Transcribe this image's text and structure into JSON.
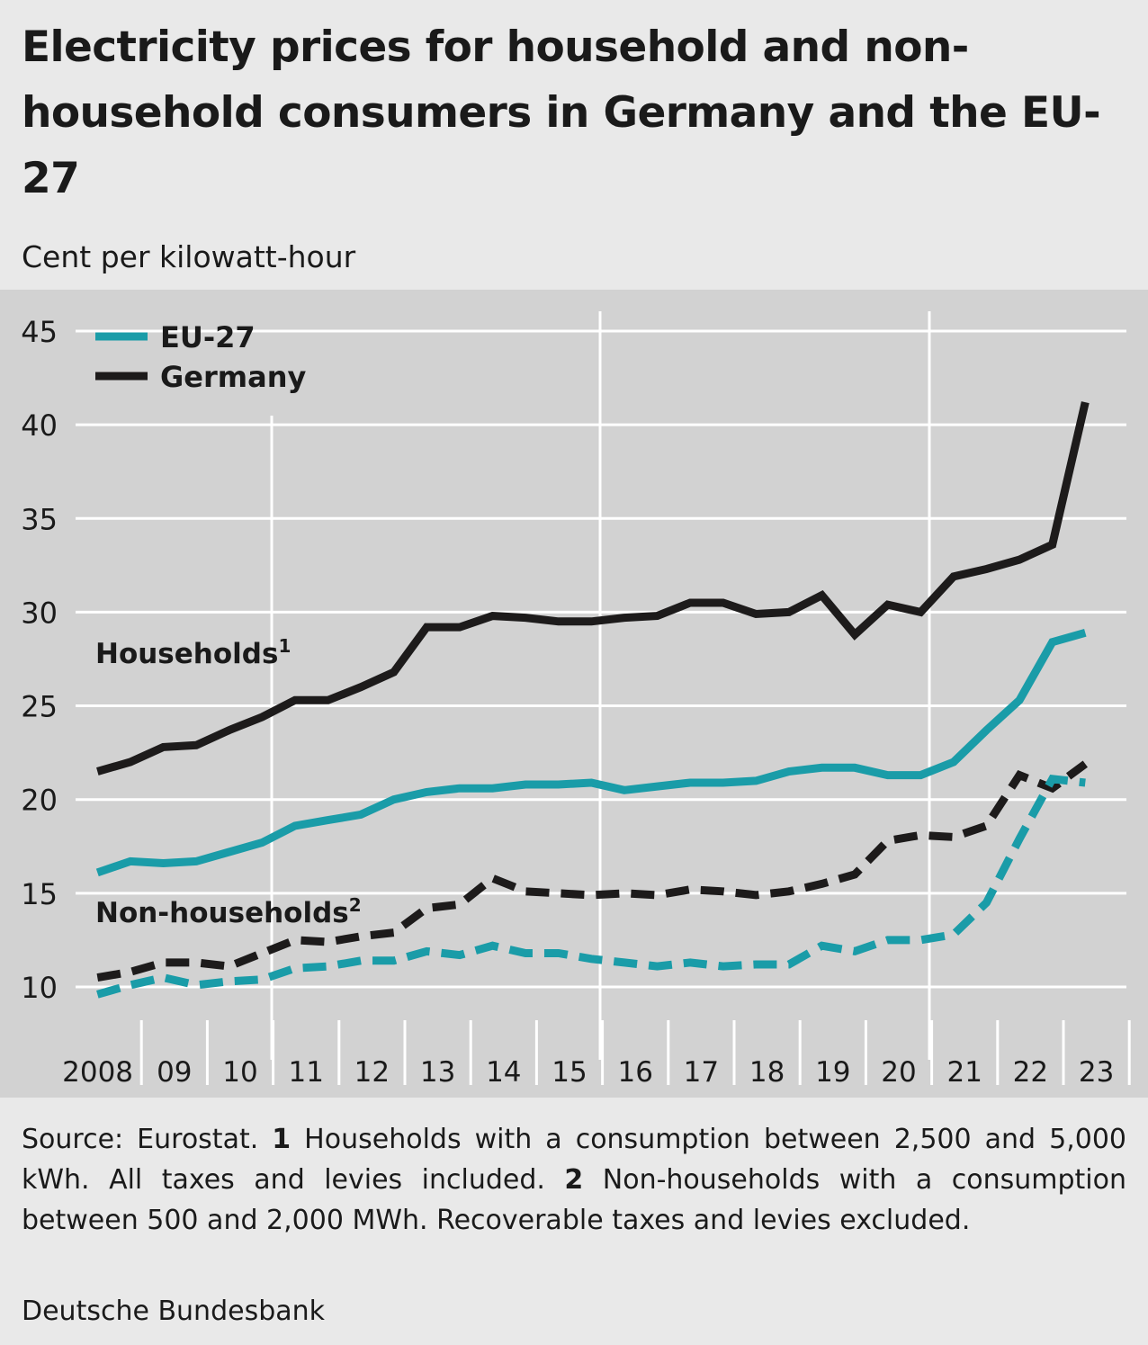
{
  "header": {
    "title": "Electricity prices for household and non-household consumers in Germany and the EU-27",
    "unit": "Cent per kilowatt-hour"
  },
  "colors": {
    "eu27": "#1a9ca8",
    "germany": "#1d1b1b",
    "panel": "#d2d2d2",
    "page": "#e9e9e9",
    "grid": "#ffffff"
  },
  "chart_data": {
    "type": "line",
    "ylim": [
      8,
      45
    ],
    "yticks": [
      "45",
      "40",
      "35",
      "30",
      "25",
      "20",
      "15",
      "10"
    ],
    "xtick_labels": [
      "2008",
      "09",
      "10",
      "11",
      "12",
      "13",
      "14",
      "15",
      "16",
      "17",
      "18",
      "19",
      "20",
      "21",
      "22",
      "23"
    ],
    "x": [
      "2008-S1",
      "2008-S2",
      "2009-S1",
      "2009-S2",
      "2010-S1",
      "2010-S2",
      "2011-S1",
      "2011-S2",
      "2012-S1",
      "2012-S2",
      "2013-S1",
      "2013-S2",
      "2014-S1",
      "2014-S2",
      "2015-S1",
      "2015-S2",
      "2016-S1",
      "2016-S2",
      "2017-S1",
      "2017-S2",
      "2018-S1",
      "2018-S2",
      "2019-S1",
      "2019-S2",
      "2020-S1",
      "2020-S2",
      "2021-S1",
      "2021-S2",
      "2022-S1",
      "2022-S2",
      "2023-S1"
    ],
    "grid": true,
    "legend": [
      {
        "label": "EU-27",
        "color": "#1a9ca8"
      },
      {
        "label": "Germany",
        "color": "#1d1b1b"
      }
    ],
    "annotations": [
      "Households",
      "Non-households"
    ],
    "annotation_notes": [
      "1",
      "2"
    ],
    "series": [
      {
        "name": "Households",
        "region": "Germany",
        "style": "solid",
        "color": "#1d1b1b",
        "values": [
          21.5,
          22.0,
          22.8,
          22.9,
          23.7,
          24.4,
          25.3,
          25.3,
          26.0,
          26.8,
          29.2,
          29.2,
          29.8,
          29.7,
          29.5,
          29.5,
          29.7,
          29.8,
          30.5,
          30.5,
          29.9,
          30.0,
          30.9,
          28.8,
          30.4,
          30.0,
          31.9,
          32.3,
          32.8,
          33.6,
          41.2
        ]
      },
      {
        "name": "Households",
        "region": "EU-27",
        "style": "solid",
        "color": "#1a9ca8",
        "values": [
          16.1,
          16.7,
          16.6,
          16.7,
          17.2,
          17.7,
          18.6,
          18.9,
          19.2,
          20.0,
          20.4,
          20.6,
          20.6,
          20.8,
          20.8,
          20.9,
          20.5,
          20.7,
          20.9,
          20.9,
          21.0,
          21.5,
          21.7,
          21.7,
          21.3,
          21.3,
          22.0,
          23.7,
          25.3,
          28.4,
          28.9
        ]
      },
      {
        "name": "Non-households",
        "region": "Germany",
        "style": "dashed",
        "color": "#1d1b1b",
        "values": [
          10.5,
          10.8,
          11.3,
          11.3,
          11.1,
          11.8,
          12.5,
          12.4,
          12.7,
          12.9,
          14.2,
          14.4,
          15.8,
          15.1,
          15.0,
          14.9,
          15.0,
          14.9,
          15.2,
          15.1,
          14.9,
          15.1,
          15.5,
          16.0,
          17.8,
          18.1,
          18.0,
          18.6,
          21.3,
          20.6,
          21.9
        ]
      },
      {
        "name": "Non-households",
        "region": "EU-27",
        "style": "dashed",
        "color": "#1a9ca8",
        "values": [
          9.6,
          10.1,
          10.5,
          10.1,
          10.3,
          10.4,
          11.0,
          11.1,
          11.4,
          11.4,
          11.9,
          11.7,
          12.2,
          11.8,
          11.8,
          11.5,
          11.3,
          11.1,
          11.3,
          11.1,
          11.2,
          11.2,
          12.2,
          11.9,
          12.5,
          12.5,
          12.8,
          14.5,
          17.9,
          21.1,
          20.9
        ]
      }
    ]
  },
  "footer": {
    "source_prefix": "Source: Eurostat. ",
    "note1_marker": "1",
    "note1_text": " Households with a consumption between 2,500 and 5,000 kWh. All taxes and levies included. ",
    "note2_marker": "2",
    "note2_text": " Non-households with a con­sumption between 500 and 2,000 MWh. Recoverable taxes and levies excluded.",
    "publisher": "Deutsche Bundesbank"
  }
}
